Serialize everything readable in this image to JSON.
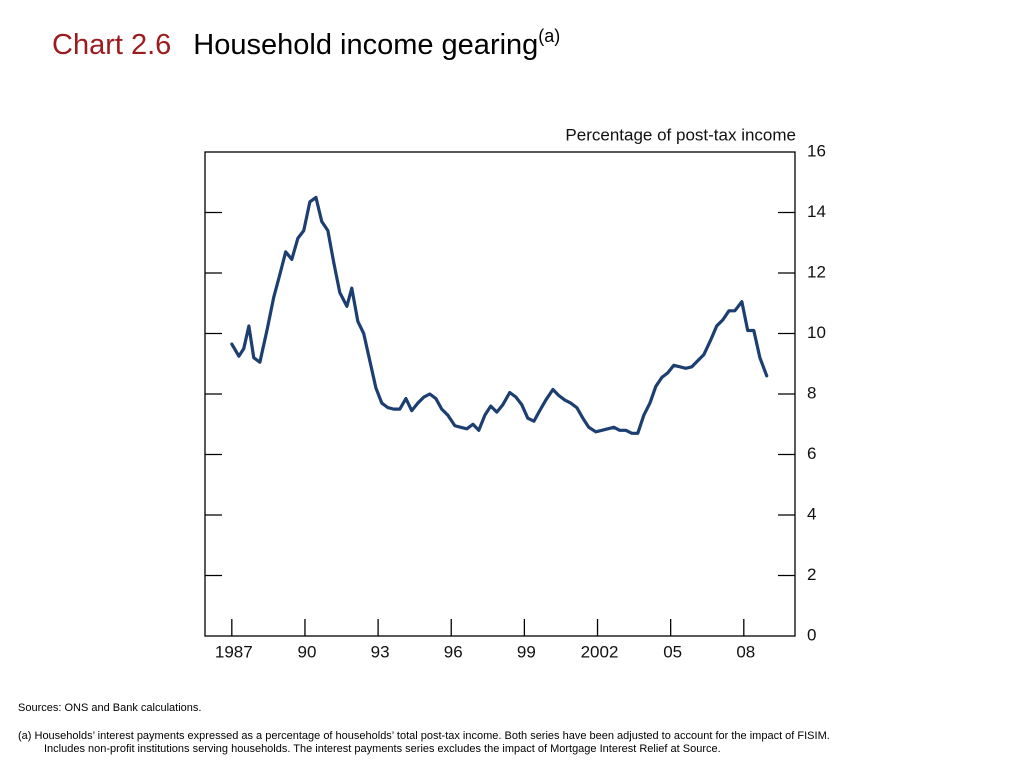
{
  "chart_data": {
    "type": "line",
    "chart_number": "Chart 2.6",
    "title": "Household income gearing",
    "title_note": "(a)",
    "y_label": "Percentage of post-tax income",
    "color": "#1d3e70",
    "grid": false,
    "xlim": [
      1985.9,
      2010.1
    ],
    "ylim": [
      0,
      16
    ],
    "yticks": [
      0,
      2,
      4,
      6,
      8,
      10,
      12,
      14,
      16
    ],
    "xticks": [
      1987,
      {
        "value": 1990,
        "label": "90"
      },
      {
        "value": 1993,
        "label": "93"
      },
      {
        "value": 1996,
        "label": "96"
      },
      {
        "value": 1999,
        "label": "99"
      },
      2002,
      {
        "value": 2005,
        "label": "05"
      },
      {
        "value": 2008,
        "label": "08"
      }
    ],
    "x": [
      1987.0,
      1987.29,
      1987.49,
      1987.7,
      1987.9,
      1988.15,
      1988.44,
      1988.72,
      1988.97,
      1989.21,
      1989.46,
      1989.71,
      1989.95,
      1990.2,
      1990.45,
      1990.69,
      1990.94,
      1991.18,
      1991.43,
      1991.72,
      1991.92,
      1992.17,
      1992.41,
      1992.66,
      1992.91,
      1993.15,
      1993.4,
      1993.64,
      1993.89,
      1994.14,
      1994.38,
      1994.63,
      1994.88,
      1995.12,
      1995.37,
      1995.61,
      1995.86,
      1996.15,
      1996.39,
      1996.64,
      1996.89,
      1997.13,
      1997.38,
      1997.62,
      1997.87,
      1998.12,
      1998.4,
      1998.65,
      1998.89,
      1999.14,
      1999.39,
      1999.63,
      1999.88,
      2000.17,
      2000.41,
      2000.66,
      2000.9,
      2001.15,
      2001.4,
      2001.64,
      2001.93,
      2002.18,
      2002.42,
      2002.67,
      2002.91,
      2003.16,
      2003.41,
      2003.65,
      2003.9,
      2004.15,
      2004.39,
      2004.64,
      2004.88,
      2005.13,
      2005.38,
      2005.62,
      2005.87,
      2006.11,
      2006.36,
      2006.65,
      2006.89,
      2007.14,
      2007.39,
      2007.63,
      2007.92,
      2008.16,
      2008.41,
      2008.66,
      2008.94
    ],
    "values": [
      9.65,
      9.25,
      9.5,
      10.25,
      9.2,
      9.05,
      10.1,
      11.2,
      11.95,
      12.7,
      12.45,
      13.15,
      13.4,
      14.35,
      14.5,
      13.7,
      13.4,
      12.35,
      11.35,
      10.9,
      11.5,
      10.4,
      10.0,
      9.1,
      8.2,
      7.7,
      7.55,
      7.5,
      7.5,
      7.85,
      7.45,
      7.7,
      7.9,
      8.0,
      7.85,
      7.5,
      7.3,
      6.95,
      6.9,
      6.85,
      7.0,
      6.8,
      7.3,
      7.6,
      7.4,
      7.65,
      8.05,
      7.9,
      7.65,
      7.2,
      7.1,
      7.45,
      7.8,
      8.15,
      7.95,
      7.8,
      7.7,
      7.55,
      7.2,
      6.9,
      6.75,
      6.8,
      6.85,
      6.9,
      6.8,
      6.8,
      6.7,
      6.7,
      7.3,
      7.7,
      8.25,
      8.55,
      8.7,
      8.95,
      8.9,
      8.85,
      8.9,
      9.1,
      9.3,
      9.8,
      10.25,
      10.45,
      10.75,
      10.75,
      11.05,
      10.1,
      10.1,
      9.2,
      8.6
    ],
    "sources": "Sources:  ONS and Bank calculations.",
    "notes": [
      "(a)   Households’ interest payments expressed as a percentage of households’ total post-tax income.  Both series have been adjusted to account for the impact of FISIM.",
      "Includes non-profit institutions serving households.  The interest payments series excludes the impact of Mortgage Interest Relief at Source."
    ]
  }
}
